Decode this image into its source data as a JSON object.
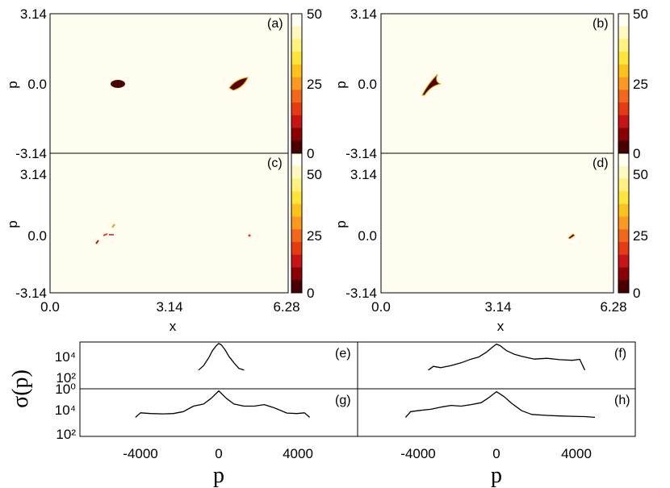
{
  "chart_data": [
    {
      "type": "heatmap",
      "panel": "(a)",
      "xlabel": "",
      "ylabel": "p",
      "xlim": [
        0,
        6.28
      ],
      "ylim": [
        -3.14,
        3.14
      ],
      "x_ticks": [],
      "y_ticks": [
        "3.14",
        "0.0",
        "-3.14"
      ],
      "colorbar": {
        "range": [
          0,
          50
        ],
        "ticks": [
          "50",
          "25",
          "0"
        ]
      },
      "features": [
        {
          "x": 1.3,
          "p": 0.0,
          "rx": 0.18,
          "rp": 0.12
        },
        {
          "x": 4.7,
          "p": 0.0,
          "rx": 0.22,
          "rp": 0.15
        }
      ]
    },
    {
      "type": "heatmap",
      "panel": "(b)",
      "xlabel": "",
      "ylabel": "p",
      "xlim": [
        0,
        6.28
      ],
      "ylim": [
        -3.14,
        3.14
      ],
      "x_ticks": [],
      "y_ticks": [
        "3.14",
        "0.0",
        "-3.14"
      ],
      "colorbar": {
        "range": [
          0,
          50
        ],
        "ticks": [
          "50",
          "25",
          "0"
        ]
      },
      "features": [
        {
          "x": 1.1,
          "p": 0.15,
          "shape": "curved streak"
        }
      ]
    },
    {
      "type": "heatmap",
      "panel": "(c)",
      "xlabel": "x",
      "ylabel": "p",
      "xlim": [
        0,
        6.28
      ],
      "ylim": [
        -3.14,
        3.14
      ],
      "x_ticks": [
        "0.0",
        "3.14",
        "6.28"
      ],
      "y_ticks": [
        "3.14",
        "0.0",
        "-3.14"
      ],
      "colorbar": {
        "range": [
          0,
          50
        ],
        "ticks": [
          "50",
          "25",
          "0"
        ]
      },
      "features": [
        {
          "x": 0.85,
          "p": -0.3
        },
        {
          "x": 1.05,
          "p": 0.05
        },
        {
          "x": 1.25,
          "p": 0.3
        },
        {
          "x": 1.45,
          "p": -0.05
        },
        {
          "x": 4.9,
          "p": 0.0
        }
      ]
    },
    {
      "type": "heatmap",
      "panel": "(d)",
      "xlabel": "x",
      "ylabel": "p",
      "xlim": [
        0,
        6.28
      ],
      "ylim": [
        -3.14,
        3.14
      ],
      "x_ticks": [
        "0.0",
        "3.14",
        "6.28"
      ],
      "y_ticks": [
        "3.14",
        "0.0",
        "-3.14"
      ],
      "colorbar": {
        "range": [
          0,
          50
        ],
        "ticks": [
          "50",
          "25",
          "0"
        ]
      },
      "features": [
        {
          "x": 4.95,
          "p": 0.0
        }
      ]
    },
    {
      "type": "line",
      "panel": "(e)",
      "log_y": true,
      "xlim": [
        -5500,
        5500
      ],
      "y_ticks": [
        "10⁴",
        "10²"
      ],
      "x": [
        -800,
        -600,
        -400,
        -250,
        -100,
        0,
        100,
        250,
        400,
        600,
        800,
        1000
      ],
      "y": [
        100,
        300,
        2000,
        12000,
        40000,
        70000,
        50000,
        15000,
        3000,
        600,
        150,
        100
      ]
    },
    {
      "type": "line",
      "panel": "(f)",
      "log_y": true,
      "xlim": [
        -5500,
        5500
      ],
      "y_ticks": [],
      "x": [
        -2700,
        -2500,
        -2200,
        -1800,
        -1400,
        -1000,
        -700,
        -400,
        -150,
        0,
        150,
        400,
        700,
        1000,
        1500,
        2000,
        2500,
        3000,
        3300,
        3500
      ],
      "y": [
        100,
        250,
        180,
        300,
        600,
        1500,
        2500,
        8000,
        30000,
        60000,
        40000,
        12000,
        5000,
        3000,
        1500,
        1800,
        1300,
        1100,
        1400,
        100
      ]
    },
    {
      "type": "line",
      "panel": "(g)",
      "log_y": true,
      "xlim": [
        -5500,
        5500
      ],
      "y_ticks": [
        "10⁴",
        "10²"
      ],
      "x": [
        -3300,
        -3100,
        -2700,
        -2200,
        -1800,
        -1400,
        -1000,
        -600,
        -300,
        0,
        300,
        600,
        1000,
        1400,
        1800,
        2200,
        2700,
        3100,
        3400,
        3600
      ],
      "y": [
        100,
        300,
        250,
        230,
        250,
        400,
        1500,
        2500,
        10000,
        60000,
        10000,
        2500,
        1500,
        1500,
        2200,
        1000,
        280,
        250,
        300,
        100
      ]
    },
    {
      "type": "line",
      "panel": "(h)",
      "log_y": true,
      "xlim": [
        -5500,
        5500
      ],
      "y_ticks": [],
      "x": [
        -3600,
        -3400,
        -3000,
        -2600,
        -2200,
        -1800,
        -1400,
        -1000,
        -600,
        -300,
        0,
        300,
        600,
        1000,
        1400,
        2000,
        2500,
        3000,
        3500,
        3900
      ],
      "y": [
        100,
        400,
        550,
        700,
        1200,
        1800,
        1500,
        2200,
        3500,
        12000,
        50000,
        15000,
        3000,
        500,
        200,
        160,
        140,
        130,
        120,
        100
      ]
    }
  ],
  "labels": {
    "panel_a": "(a)",
    "panel_b": "(b)",
    "panel_c": "(c)",
    "panel_d": "(d)",
    "panel_e": "(e)",
    "panel_f": "(f)",
    "panel_g": "(g)",
    "panel_h": "(h)",
    "yaxis_p": "p",
    "xaxis_x": "x",
    "bottom_xlabel": "p",
    "sigma_label": "σ(p)",
    "ytick_top": "3.14",
    "ytick_mid": "0.0",
    "ytick_bot": "-3.14",
    "xtick_0": "0.0",
    "xtick_mid": "3.14",
    "xtick_max": "6.28",
    "cb_top": "50",
    "cb_mid": "25",
    "cb_bot": "0",
    "log_top": "10⁴",
    "log_bot": "10²",
    "log_bot_upper": "10⁰",
    "bx_neg": "-4000",
    "bx_zero": "0",
    "bx_pos": "4000"
  },
  "colors": {
    "background": "#fffdf0",
    "colorbar": [
      "#4a0000",
      "#8b0000",
      "#c81414",
      "#e83a10",
      "#f4661a",
      "#fb9a1e",
      "#ffc21a",
      "#ffe43a",
      "#fff17e",
      "#fff9bf",
      "#fffef2"
    ]
  }
}
